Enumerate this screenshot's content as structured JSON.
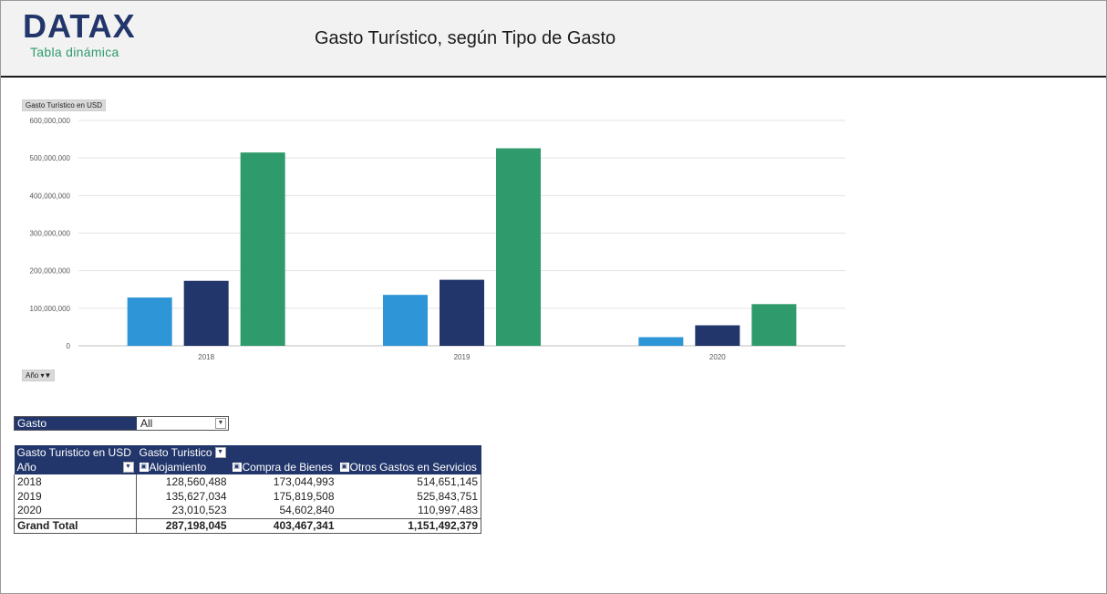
{
  "header": {
    "logo_text": "DATAX",
    "logo_subtitle": "Tabla dinámica",
    "title": "Gasto Turístico, según Tipo de Gasto"
  },
  "chart_field_buttons": {
    "value_field": "Gasto Turístico en USD",
    "axis_field": "Año"
  },
  "colors": {
    "header_bg": "#f2f2f2",
    "brand_navy": "#22366b",
    "brand_green": "#2e9a6c",
    "series_alojamiento": "#2e95d6",
    "series_compra": "#22366b",
    "series_otros": "#2f9a6c"
  },
  "chart_data": {
    "type": "bar",
    "categories": [
      "2018",
      "2019",
      "2020"
    ],
    "series": [
      {
        "values": [
          128560488,
          135627034,
          23010523
        ]
      },
      {
        "values": [
          173044993,
          175819508,
          54602840
        ]
      },
      {
        "values": [
          514651145,
          525843751,
          110997483
        ]
      }
    ],
    "ylim": [
      0,
      600000000
    ],
    "yticks": [
      "0",
      "100,000,000",
      "200,000,000",
      "300,000,000",
      "400,000,000",
      "500,000,000",
      "600,000,000"
    ],
    "ytick_values": [
      0,
      100000000,
      200000000,
      300000000,
      400000000,
      500000000,
      600000000
    ],
    "grid": true,
    "legend": "none"
  },
  "filter": {
    "label": "Gasto",
    "value": "All"
  },
  "pivot": {
    "header_value": "Gasto Turistico en USD",
    "header_columns_field": "Gasto Turistico",
    "row_field": "Año",
    "columns": [
      "Alojamiento",
      "Compra de Bienes",
      "Otros Gastos en Servicios"
    ],
    "rows": [
      {
        "label": "2018",
        "values": [
          "128,560,488",
          "173,044,993",
          "514,651,145"
        ]
      },
      {
        "label": "2019",
        "values": [
          "135,627,034",
          "175,819,508",
          "525,843,751"
        ]
      },
      {
        "label": "2020",
        "values": [
          "23,010,523",
          "54,602,840",
          "110,997,483"
        ]
      }
    ],
    "total": {
      "label": "Grand Total",
      "values": [
        "287,198,045",
        "403,467,341",
        "1,151,492,379"
      ]
    }
  }
}
